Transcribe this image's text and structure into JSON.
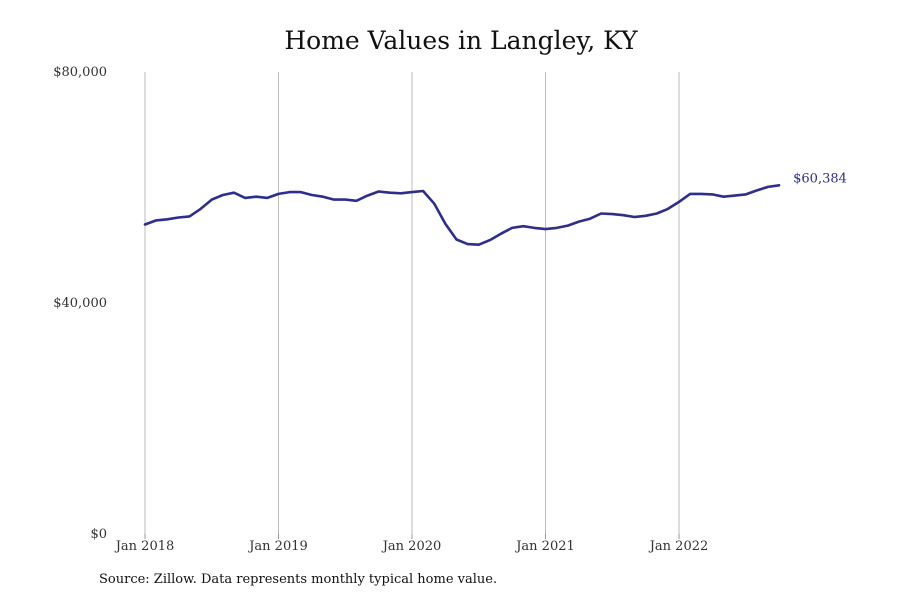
{
  "chart_data": {
    "type": "line",
    "title": "Home Values in Langley, KY",
    "xlabel": "",
    "ylabel": "",
    "ylim": [
      0,
      80000
    ],
    "y_ticks": [
      {
        "value": 0,
        "label": "$0"
      },
      {
        "value": 40000,
        "label": "$40,000"
      },
      {
        "value": 80000,
        "label": "$80,000"
      }
    ],
    "x_ticks": [
      {
        "date": "2018-01",
        "label": "Jan 2018"
      },
      {
        "date": "2019-01",
        "label": "Jan 2019"
      },
      {
        "date": "2020-01",
        "label": "Jan 2020"
      },
      {
        "date": "2021-01",
        "label": "Jan 2021"
      },
      {
        "date": "2022-01",
        "label": "Jan 2022"
      }
    ],
    "grid": "vertical",
    "colors": {
      "line": "#2e2e8e",
      "grid": "#bbbbbb"
    },
    "end_label": "$60,384",
    "series": [
      {
        "x": [
          "2018-01",
          "2018-02",
          "2018-03",
          "2018-04",
          "2018-05",
          "2018-06",
          "2018-07",
          "2018-08",
          "2018-09",
          "2018-10",
          "2018-11",
          "2018-12",
          "2019-01",
          "2019-02",
          "2019-03",
          "2019-04",
          "2019-05",
          "2019-06",
          "2019-07",
          "2019-08",
          "2019-09",
          "2019-10",
          "2019-11",
          "2019-12",
          "2020-01",
          "2020-02",
          "2020-03",
          "2020-04",
          "2020-05",
          "2020-06",
          "2020-07",
          "2020-08",
          "2020-09",
          "2020-10",
          "2020-11",
          "2020-12",
          "2021-01",
          "2021-02",
          "2021-03",
          "2021-04",
          "2021-05",
          "2021-06",
          "2021-07",
          "2021-08",
          "2021-09",
          "2021-10",
          "2021-11",
          "2021-12",
          "2022-01",
          "2022-02",
          "2022-03",
          "2022-04",
          "2022-05",
          "2022-06",
          "2022-07",
          "2022-08",
          "2022-09",
          "2022-10"
        ],
        "values": [
          53600,
          54300,
          54500,
          54800,
          55000,
          56300,
          57900,
          58700,
          59100,
          58200,
          58400,
          58200,
          58900,
          59200,
          59200,
          58700,
          58400,
          57900,
          57900,
          57700,
          58600,
          59300,
          59100,
          59000,
          59200,
          59400,
          57200,
          53700,
          51000,
          50200,
          50100,
          50900,
          52000,
          53000,
          53300,
          53000,
          52800,
          53000,
          53400,
          54100,
          54600,
          55500,
          55400,
          55200,
          54900,
          55100,
          55500,
          56300,
          57500,
          58900,
          58900,
          58800,
          58400,
          58600,
          58800,
          59500,
          60100,
          60384
        ]
      }
    ]
  },
  "source_note": "Source: Zillow. Data represents monthly typical home value."
}
